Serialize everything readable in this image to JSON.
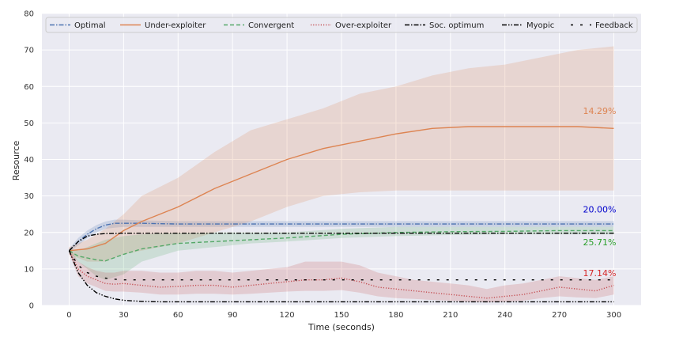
{
  "chart_data": {
    "type": "line",
    "xlabel": "Time (seconds)",
    "ylabel": "Resource",
    "xlim": [
      -15,
      315
    ],
    "ylim": [
      0,
      80
    ],
    "xticks": [
      0,
      30,
      60,
      90,
      120,
      150,
      180,
      210,
      240,
      270,
      300
    ],
    "yticks": [
      0,
      10,
      20,
      30,
      40,
      50,
      60,
      70,
      80
    ],
    "grid": true,
    "legend_position": "top",
    "background_color": "#eaeaf2",
    "legend": [
      {
        "label": "Optimal",
        "color": "#4c72b0",
        "style": "dashdot"
      },
      {
        "label": "Under-exploiter",
        "color": "#dd8452",
        "style": "solid"
      },
      {
        "label": "Convergent",
        "color": "#55a868",
        "style": "dashed"
      },
      {
        "label": "Over-exploiter",
        "color": "#c44e52",
        "style": "dotted"
      },
      {
        "label": "Soc. optimum",
        "color": "#000000",
        "style": "dashdot"
      },
      {
        "label": "Myopic",
        "color": "#000000",
        "style": "dashdotdot"
      },
      {
        "label": "Feedback",
        "color": "#000000",
        "style": "sparse-dash"
      }
    ],
    "series": [
      {
        "name": "Optimal",
        "color": "#4c72b0",
        "style": "dashdot",
        "x": [
          0,
          5,
          10,
          15,
          20,
          25,
          30,
          40,
          60,
          90,
          120,
          150,
          180,
          210,
          240,
          270,
          300
        ],
        "y": [
          15,
          17.5,
          19.5,
          21,
          22,
          22.5,
          22.5,
          22.5,
          22.3,
          22.3,
          22.3,
          22.3,
          22.3,
          22.3,
          22.3,
          22.3,
          22.3
        ],
        "band_low": [
          14.5,
          16.5,
          18.5,
          20,
          21,
          21.3,
          21.5,
          21.5,
          21.5,
          21.5,
          21.5,
          21.5,
          21.5,
          21.5,
          21.5,
          21.5,
          21.5
        ],
        "band_high": [
          15.5,
          18.5,
          20.5,
          22,
          23,
          23.5,
          23.5,
          23.3,
          23.1,
          23.1,
          23.1,
          23.1,
          23.1,
          23.1,
          23.1,
          23.1,
          23.1
        ]
      },
      {
        "name": "Under-exploiter",
        "color": "#dd8452",
        "style": "solid",
        "x": [
          0,
          10,
          20,
          30,
          40,
          60,
          80,
          100,
          120,
          140,
          160,
          180,
          200,
          220,
          240,
          260,
          280,
          300
        ],
        "y": [
          15,
          15.5,
          17,
          20.5,
          23,
          27,
          32,
          36,
          40,
          43,
          45,
          47,
          48.5,
          49,
          49,
          49,
          49,
          48.5
        ],
        "band_low": [
          14,
          12,
          12,
          14,
          15,
          17,
          20,
          23,
          27,
          30,
          31,
          31.5,
          31.5,
          31.5,
          31.5,
          31.5,
          31.5,
          31.5
        ],
        "band_high": [
          16,
          18,
          21,
          25,
          30,
          35,
          42,
          48,
          51,
          54,
          58,
          60,
          63,
          65,
          66,
          68,
          70,
          71
        ]
      },
      {
        "name": "Convergent",
        "color": "#55a868",
        "style": "dashed",
        "x": [
          0,
          5,
          10,
          15,
          20,
          30,
          40,
          60,
          80,
          100,
          120,
          150,
          180,
          210,
          240,
          270,
          300
        ],
        "y": [
          15,
          13.5,
          13,
          12.5,
          12.2,
          14,
          15.5,
          17,
          17.5,
          18,
          18.5,
          19.5,
          20,
          20.2,
          20.3,
          20.5,
          20.5
        ],
        "band_low": [
          14.5,
          12,
          10,
          8,
          7,
          8.5,
          12,
          15,
          16,
          17,
          17.5,
          18.5,
          19,
          19.3,
          19.5,
          19.5,
          19.5
        ],
        "band_high": [
          15.5,
          15,
          16,
          17,
          18,
          19,
          19.5,
          19.8,
          20,
          20,
          20,
          21,
          21.5,
          21.5,
          21.5,
          21.5,
          21.5
        ]
      },
      {
        "name": "Over-exploiter",
        "color": "#c44e52",
        "style": "dotted",
        "x": [
          0,
          5,
          10,
          15,
          20,
          25,
          30,
          40,
          50,
          60,
          70,
          80,
          90,
          100,
          110,
          120,
          130,
          140,
          150,
          160,
          170,
          180,
          190,
          200,
          210,
          220,
          230,
          240,
          250,
          260,
          270,
          280,
          290,
          300
        ],
        "y": [
          15,
          10,
          8,
          7,
          6,
          5.8,
          6,
          5.5,
          5,
          5.2,
          5.5,
          5.5,
          5,
          5.5,
          6,
          6.5,
          7,
          7,
          7.5,
          6.5,
          5,
          4.5,
          4,
          3.5,
          3,
          2.5,
          2,
          2.5,
          3,
          4,
          5,
          4.5,
          4,
          5.5
        ],
        "band_low": [
          14,
          8,
          6,
          5,
          4,
          3.8,
          3.8,
          3.5,
          3,
          3,
          3.2,
          3.2,
          3,
          3.2,
          3.5,
          3.8,
          4,
          4,
          4.2,
          3.5,
          2.5,
          2,
          1.8,
          1.5,
          1.3,
          1,
          0.8,
          1,
          1.3,
          2,
          2.5,
          2.2,
          2,
          3
        ],
        "band_high": [
          16,
          12,
          10.5,
          9.5,
          9,
          9,
          9.5,
          9.5,
          9,
          9,
          9.5,
          9.5,
          9,
          9.5,
          10,
          10.5,
          12,
          12,
          12,
          11,
          9,
          8,
          7,
          6.5,
          6,
          5.5,
          4.5,
          5.5,
          6,
          7,
          8,
          7.5,
          7,
          8
        ]
      },
      {
        "name": "Soc. optimum",
        "color": "#000000",
        "style": "dashdot",
        "x": [
          0,
          5,
          10,
          15,
          20,
          30,
          60,
          100,
          150,
          200,
          250,
          300
        ],
        "y": [
          15,
          17.5,
          19,
          19.5,
          19.7,
          19.8,
          19.8,
          19.8,
          19.8,
          19.8,
          19.8,
          19.8
        ]
      },
      {
        "name": "Myopic",
        "color": "#000000",
        "style": "dashdotdot",
        "x": [
          0,
          5,
          10,
          15,
          20,
          25,
          30,
          40,
          50,
          60,
          80,
          100,
          150,
          200,
          250,
          300
        ],
        "y": [
          15,
          9,
          5.5,
          3.5,
          2.5,
          1.8,
          1.4,
          1.1,
          1,
          1,
          1,
          1,
          1,
          1,
          1,
          1
        ]
      },
      {
        "name": "Feedback",
        "color": "#000000",
        "style": "sparse-dash",
        "x": [
          0,
          5,
          10,
          15,
          20,
          25,
          30,
          40,
          50,
          60,
          100,
          150,
          200,
          250,
          300
        ],
        "y": [
          15,
          11,
          9,
          8,
          7.5,
          7.2,
          7,
          7,
          7,
          7,
          7,
          7,
          7,
          7,
          7
        ]
      }
    ],
    "annotations": [
      {
        "text": "14.29%",
        "x": 283,
        "y": 52.5,
        "color": "#dd8452"
      },
      {
        "text": "20.00%",
        "x": 283,
        "y": 25.5,
        "color": "#0000cc"
      },
      {
        "text": "25.71%",
        "x": 283,
        "y": 16.5,
        "color": "#2ca02c"
      },
      {
        "text": "17.14%",
        "x": 283,
        "y": 8,
        "color": "#d62728"
      }
    ]
  }
}
